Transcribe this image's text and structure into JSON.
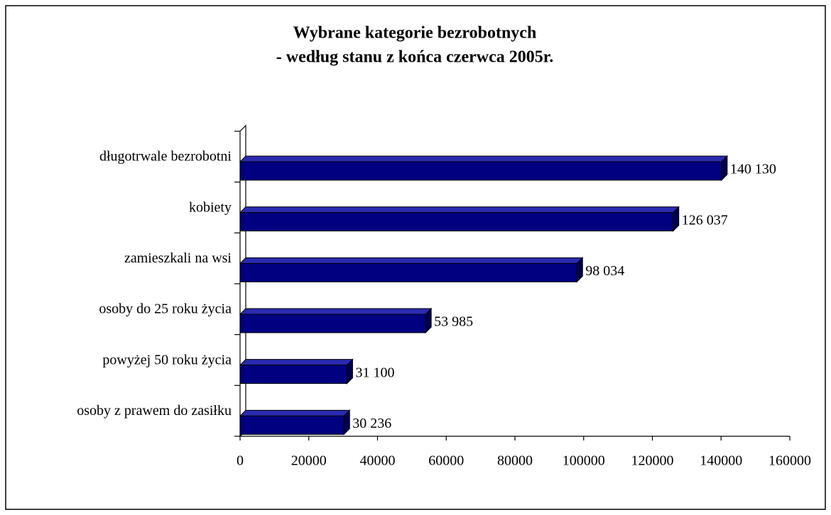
{
  "chart_data": {
    "type": "bar",
    "orientation": "horizontal",
    "title": "Wybrane kategorie bezrobotnych",
    "subtitle": "- według stanu z końca czerwca 2005r.",
    "categories": [
      "długotrwale bezrobotni",
      "kobiety",
      "zamieszkali na wsi",
      "osoby do 25 roku życia",
      "powyżej 50 roku życia",
      "osoby z prawem do zasiłku"
    ],
    "values": [
      140130,
      126037,
      98034,
      53985,
      31100,
      30236
    ],
    "value_labels": [
      "140 130",
      "126 037",
      "98 034",
      "53 985",
      "31 100",
      "30 236"
    ],
    "color": "#000080",
    "xlim": [
      0,
      160000
    ],
    "xticks": [
      0,
      20000,
      40000,
      60000,
      80000,
      100000,
      120000,
      140000,
      160000
    ],
    "grid": false
  }
}
